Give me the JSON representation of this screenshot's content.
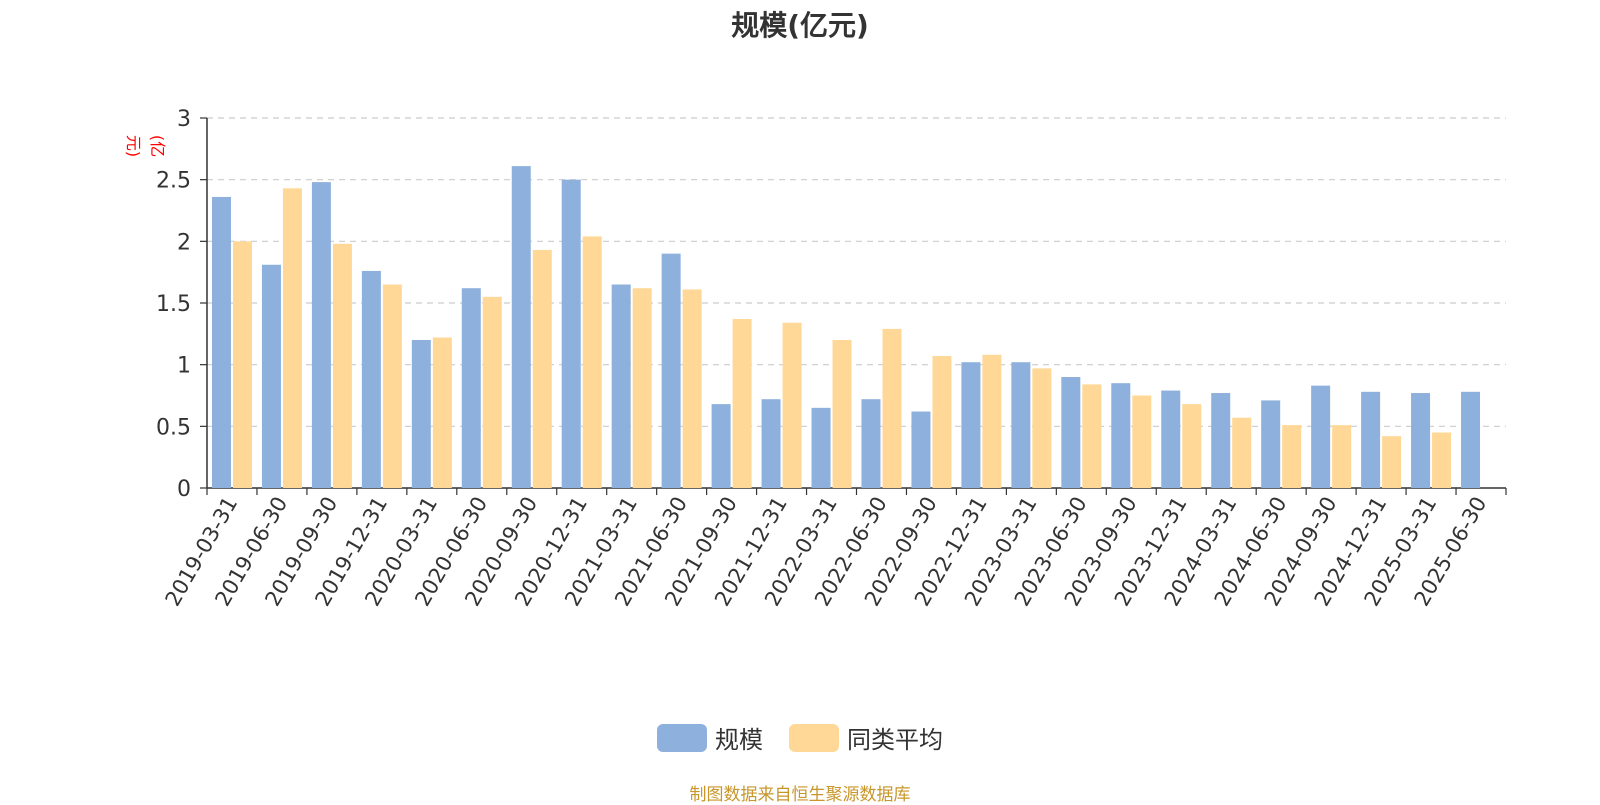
{
  "colors": {
    "series1": "#8eb0dc",
    "series2": "#ffd897",
    "source": "#c8962a",
    "ylabel": "#ff0000"
  },
  "source_text": "制图数据来自恒生聚源数据库",
  "chart_data": {
    "type": "bar",
    "title": "规模(亿元)",
    "ylabel": "(亿元)",
    "xlabel": "",
    "ylim": [
      0,
      3
    ],
    "yticks": [
      "0",
      "0.5",
      "1",
      "1.5",
      "2",
      "2.5",
      "3"
    ],
    "grid": true,
    "legend_position": "bottom",
    "categories": [
      "2019-03-31",
      "2019-06-30",
      "2019-09-30",
      "2019-12-31",
      "2020-03-31",
      "2020-06-30",
      "2020-09-30",
      "2020-12-31",
      "2021-03-31",
      "2021-06-30",
      "2021-09-30",
      "2021-12-31",
      "2022-03-31",
      "2022-06-30",
      "2022-09-30",
      "2022-12-31",
      "2023-03-31",
      "2023-06-30",
      "2023-09-30",
      "2023-12-31",
      "2024-03-31",
      "2024-06-30",
      "2024-09-30",
      "2024-12-31",
      "2025-03-31",
      "2025-06-30"
    ],
    "series": [
      {
        "name": "规模",
        "values": [
          2.36,
          1.81,
          2.48,
          1.76,
          1.2,
          1.62,
          2.61,
          2.5,
          1.65,
          1.9,
          0.68,
          0.72,
          0.65,
          0.72,
          0.62,
          1.02,
          1.02,
          0.9,
          0.85,
          0.79,
          0.77,
          0.71,
          0.83,
          0.78,
          0.77,
          0.78
        ]
      },
      {
        "name": "同类平均",
        "values": [
          2.0,
          2.43,
          1.98,
          1.65,
          1.22,
          1.55,
          1.93,
          2.04,
          1.62,
          1.61,
          1.37,
          1.34,
          1.2,
          1.29,
          1.07,
          1.08,
          0.97,
          0.84,
          0.75,
          0.68,
          0.57,
          0.51,
          0.51,
          0.42,
          0.45,
          null
        ]
      }
    ]
  }
}
